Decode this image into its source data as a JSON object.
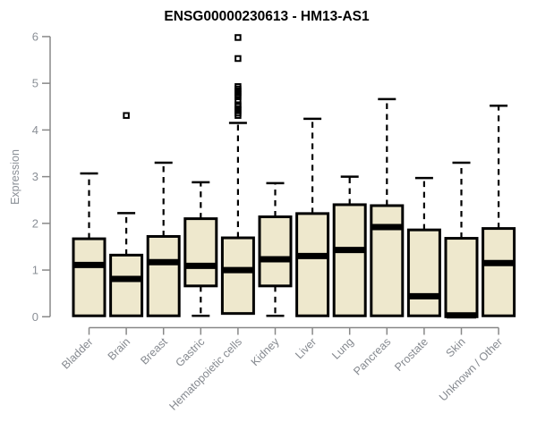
{
  "chart_data": {
    "type": "boxplot",
    "title": "ENSG00000230613 - HM13-AS1",
    "ylabel": "Expression",
    "xlabel": "",
    "ylim": [
      0,
      6
    ],
    "yticks": [
      0,
      1,
      2,
      3,
      4,
      5,
      6
    ],
    "grid": "off",
    "legend": "none",
    "categories": [
      "Bladder",
      "Brain",
      "Breast",
      "Gastric",
      "Hematopoietic cells",
      "Kidney",
      "Liver",
      "Lung",
      "Pancreas",
      "Prostate",
      "Skin",
      "Unknown / Other"
    ],
    "series": [
      {
        "name": "Bladder",
        "whisker_low": 0.02,
        "q1": 0.02,
        "median": 1.11,
        "q3": 1.67,
        "whisker_high": 3.07,
        "outliers": []
      },
      {
        "name": "Brain",
        "whisker_low": 0.02,
        "q1": 0.02,
        "median": 0.81,
        "q3": 1.32,
        "whisker_high": 2.22,
        "outliers": [
          4.31
        ]
      },
      {
        "name": "Breast",
        "whisker_low": 0.02,
        "q1": 0.02,
        "median": 1.17,
        "q3": 1.72,
        "whisker_high": 3.3,
        "outliers": []
      },
      {
        "name": "Gastric",
        "whisker_low": 0.02,
        "q1": 0.66,
        "median": 1.09,
        "q3": 2.1,
        "whisker_high": 2.88,
        "outliers": []
      },
      {
        "name": "Hematopoietic cells",
        "whisker_low": 0.07,
        "q1": 0.07,
        "median": 1.0,
        "q3": 1.69,
        "whisker_high": 4.15,
        "outliers": [
          5.98,
          5.53,
          4.93,
          4.88,
          4.84,
          4.79,
          4.75,
          4.71,
          4.62,
          4.54,
          4.5,
          4.45,
          4.41,
          4.36,
          4.31
        ]
      },
      {
        "name": "Kidney",
        "whisker_low": 0.02,
        "q1": 0.66,
        "median": 1.23,
        "q3": 2.14,
        "whisker_high": 2.86,
        "outliers": []
      },
      {
        "name": "Liver",
        "whisker_low": 0.02,
        "q1": 0.02,
        "median": 1.3,
        "q3": 2.21,
        "whisker_high": 4.24,
        "outliers": []
      },
      {
        "name": "Lung",
        "whisker_low": 0.02,
        "q1": 0.02,
        "median": 1.43,
        "q3": 2.4,
        "whisker_high": 3.0,
        "outliers": []
      },
      {
        "name": "Pancreas",
        "whisker_low": 0.02,
        "q1": 0.02,
        "median": 1.92,
        "q3": 2.38,
        "whisker_high": 4.66,
        "outliers": []
      },
      {
        "name": "Prostate",
        "whisker_low": 0.02,
        "q1": 0.02,
        "median": 0.44,
        "q3": 1.86,
        "whisker_high": 2.97,
        "outliers": []
      },
      {
        "name": "Skin",
        "whisker_low": 0.0,
        "q1": 0.0,
        "median": 0.03,
        "q3": 1.68,
        "whisker_high": 3.3,
        "outliers": []
      },
      {
        "name": "Unknown / Other",
        "whisker_low": 0.02,
        "q1": 0.02,
        "median": 1.15,
        "q3": 1.89,
        "whisker_high": 4.52,
        "outliers": []
      }
    ],
    "colors": {
      "box_fill": "#EEE8CD",
      "box_stroke": "#000000",
      "median": "#000000",
      "whisker": "#000000",
      "outlier": "#000000",
      "axis": "#888888",
      "axis_text": "#8a8f96",
      "title_text": "#000000"
    }
  }
}
